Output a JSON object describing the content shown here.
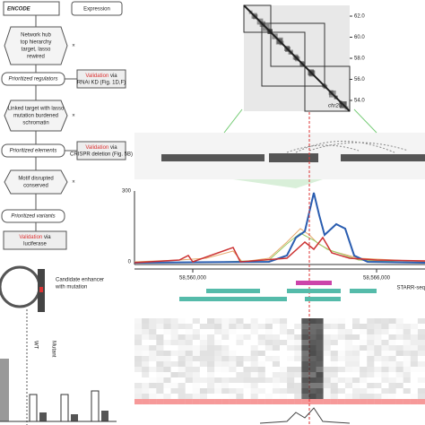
{
  "flowchart": {
    "logo": "ENCODE",
    "source": "Expression",
    "criteria": [
      {
        "lines": [
          "Network hub",
          "top hierarchy",
          "target, lasso",
          "rewired"
        ]
      },
      {
        "lines": [
          "Linked target with lasso",
          "mutation burdened",
          "schromatin"
        ]
      },
      {
        "lines": [
          "Motif disrupted",
          "conserved"
        ]
      }
    ],
    "outputs": [
      "Prioritized regulators",
      "Prioritized elements",
      "Prioritized variants"
    ],
    "validations": [
      {
        "highlight": "Validation",
        "lines": [
          " via",
          "RNAi KD (Fig. 1D,F)"
        ]
      },
      {
        "highlight": "Validation",
        "lines": [
          " via",
          "CRISPR deletion (Fig. 5B)"
        ]
      },
      {
        "highlight": "Validation",
        "lines": [
          " via",
          "luciferase"
        ]
      }
    ]
  },
  "construct": {
    "label": [
      "Candidate enhancer",
      "with mutation"
    ],
    "alleles": [
      "Mutant",
      "WT"
    ]
  },
  "hic": {
    "ticks": [
      "62.0",
      "60.0",
      "58.0",
      "56.0",
      "54.0"
    ],
    "label": "chr20"
  },
  "signal": {
    "y_top": "300",
    "y_bottom": "0",
    "x_ticks": [
      "58,560,000",
      "58,566,000"
    ],
    "track_label": "STARR-seq"
  }
}
